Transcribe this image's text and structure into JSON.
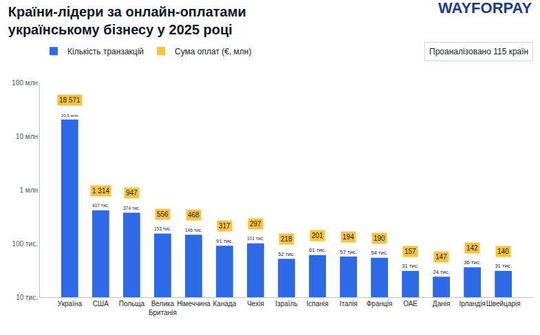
{
  "chart_data": {
    "type": "bar",
    "title": "Країни-лідери за онлайн-оплатами українському бізнесу у 2025 році",
    "brand": "WAYFORPAY",
    "note": "Проаналізовано 115 країн",
    "categories": [
      "Україна",
      "США",
      "Польща",
      "Велика Британія",
      "Німеччина",
      "Канада",
      "Чехія",
      "Ізраїль",
      "Іспанія",
      "Італія",
      "Франція",
      "ОАЕ",
      "Данія",
      "Ірландія",
      "Швейцарія"
    ],
    "series": [
      {
        "name": "Кількість транзакцій",
        "type": "bar",
        "color": "#2e6ae6",
        "values": [
          20500,
          417,
          374,
          153,
          146,
          91,
          101,
          52,
          61,
          57,
          54,
          31,
          24,
          36,
          31
        ],
        "value_labels": [
          "20,5 млн",
          "417 тис.",
          "374 тис.",
          "153 тис.",
          "146 тис.",
          "91 тис.",
          "101 тис.",
          "52 тис.",
          "61 тис.",
          "57 тис.",
          "54 тис.",
          "31 тис.",
          "24 тис.",
          "36 тис.",
          "31 тис."
        ]
      },
      {
        "name": "Сума оплат (€, млн)",
        "type": "text",
        "color": "#f6c343",
        "values": [
          18571,
          1314,
          947,
          556,
          468,
          317,
          297,
          218,
          201,
          194,
          190,
          157,
          147,
          142,
          140
        ],
        "value_labels": [
          "18 571",
          "1 314",
          "947",
          "556",
          "468",
          "317",
          "297",
          "218",
          "201",
          "194",
          "190",
          "157",
          "147",
          "142",
          "140"
        ]
      }
    ],
    "log": "y",
    "ylim": [
      10,
      100000
    ],
    "yticks": [
      {
        "value": 10,
        "label": "10 тис."
      },
      {
        "value": 100,
        "label": "100 тис."
      },
      {
        "value": 1000,
        "label": "1 млн"
      },
      {
        "value": 10000,
        "label": "10 млн"
      },
      {
        "value": 100000,
        "label": "100 млн"
      }
    ],
    "grid": false,
    "data_labels": true,
    "legend": "top-left"
  }
}
